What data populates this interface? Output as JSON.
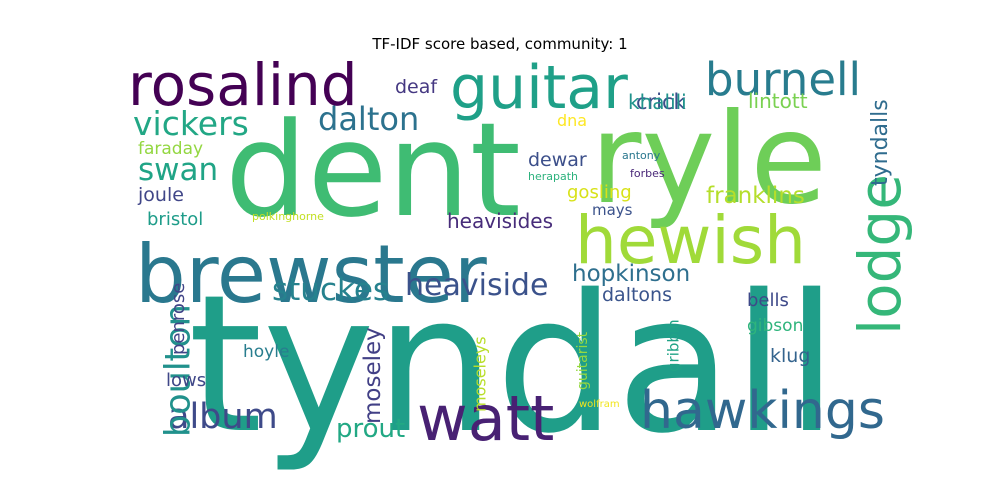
{
  "chart_data": {
    "type": "wordcloud",
    "title": "TF-IDF score based, community: 1",
    "words": [
      {
        "text": "tyndall",
        "weight": 1.0,
        "color": "#1f9e89"
      },
      {
        "text": "dent",
        "weight": 0.92,
        "color": "#3fbc73"
      },
      {
        "text": "ryle",
        "weight": 0.88,
        "color": "#6ece58"
      },
      {
        "text": "brewster",
        "weight": 0.62,
        "color": "#2a788e"
      },
      {
        "text": "hewish",
        "weight": 0.55,
        "color": "#a0da39"
      },
      {
        "text": "watt",
        "weight": 0.52,
        "color": "#482173"
      },
      {
        "text": "hawkings",
        "weight": 0.45,
        "color": "#31688e"
      },
      {
        "text": "guitar",
        "weight": 0.44,
        "color": "#1fa088"
      },
      {
        "text": "rosalind",
        "weight": 0.4,
        "color": "#440154"
      },
      {
        "text": "lodge",
        "weight": 0.38,
        "color": "#35b779"
      },
      {
        "text": "burnell",
        "weight": 0.36,
        "color": "#287c8e"
      },
      {
        "text": "album",
        "weight": 0.3,
        "color": "#3e4a89"
      },
      {
        "text": "boulton",
        "weight": 0.29,
        "color": "#21918c"
      },
      {
        "text": "vickers",
        "weight": 0.28,
        "color": "#22a785"
      },
      {
        "text": "dalton",
        "weight": 0.27,
        "color": "#2c728e"
      },
      {
        "text": "stuckes",
        "weight": 0.26,
        "color": "#26828e"
      },
      {
        "text": "heaviside",
        "weight": 0.25,
        "color": "#3b528b"
      },
      {
        "text": "swan",
        "weight": 0.24,
        "color": "#20a486"
      },
      {
        "text": "prout",
        "weight": 0.2,
        "color": "#22a884"
      },
      {
        "text": "franklins",
        "weight": 0.18,
        "color": "#b5de2b"
      },
      {
        "text": "hopkinson",
        "weight": 0.18,
        "color": "#2e6f8e"
      },
      {
        "text": "tyndalls",
        "weight": 0.17,
        "color": "#2f6c8e"
      },
      {
        "text": "moseley",
        "weight": 0.16,
        "color": "#424086"
      },
      {
        "text": "heavisides",
        "weight": 0.15,
        "color": "#472c7a"
      },
      {
        "text": "crick",
        "weight": 0.15,
        "color": "#3d4d8a"
      },
      {
        "text": "khalili",
        "weight": 0.15,
        "color": "#20938c"
      },
      {
        "text": "lintott",
        "weight": 0.15,
        "color": "#7ad151"
      },
      {
        "text": "daltons",
        "weight": 0.15,
        "color": "#3a548c"
      },
      {
        "text": "penrose",
        "weight": 0.14,
        "color": "#414487"
      },
      {
        "text": "joule",
        "weight": 0.14,
        "color": "#404688"
      },
      {
        "text": "bristol",
        "weight": 0.14,
        "color": "#1e9c89"
      },
      {
        "text": "faraday",
        "weight": 0.14,
        "color": "#93d741"
      },
      {
        "text": "dewar",
        "weight": 0.14,
        "color": "#3c4f8a"
      },
      {
        "text": "deaf",
        "weight": 0.14,
        "color": "#453882"
      },
      {
        "text": "gosling",
        "weight": 0.14,
        "color": "#d8e219"
      },
      {
        "text": "bells",
        "weight": 0.14,
        "color": "#3e4989"
      },
      {
        "text": "gibson",
        "weight": 0.14,
        "color": "#2fb47c"
      },
      {
        "text": "klug",
        "weight": 0.14,
        "color": "#33638d"
      },
      {
        "text": "hoyle",
        "weight": 0.14,
        "color": "#287d8e"
      },
      {
        "text": "lows",
        "weight": 0.14,
        "color": "#3f4788"
      },
      {
        "text": "moseleys",
        "weight": 0.12,
        "color": "#b8de29"
      },
      {
        "text": "guitarist",
        "weight": 0.11,
        "color": "#95d840"
      },
      {
        "text": "gribbin",
        "weight": 0.11,
        "color": "#20a386"
      },
      {
        "text": "mays",
        "weight": 0.11,
        "color": "#3b528b"
      },
      {
        "text": "dna",
        "weight": 0.11,
        "color": "#fde725"
      },
      {
        "text": "antony",
        "weight": 0.08,
        "color": "#2a778e"
      },
      {
        "text": "forbes",
        "weight": 0.08,
        "color": "#482677"
      },
      {
        "text": "herapath",
        "weight": 0.08,
        "color": "#2db27d"
      },
      {
        "text": "polkinghorne",
        "weight": 0.08,
        "color": "#c2df23"
      },
      {
        "text": "wolfram",
        "weight": 0.07,
        "color": "#f1e51d"
      }
    ]
  }
}
